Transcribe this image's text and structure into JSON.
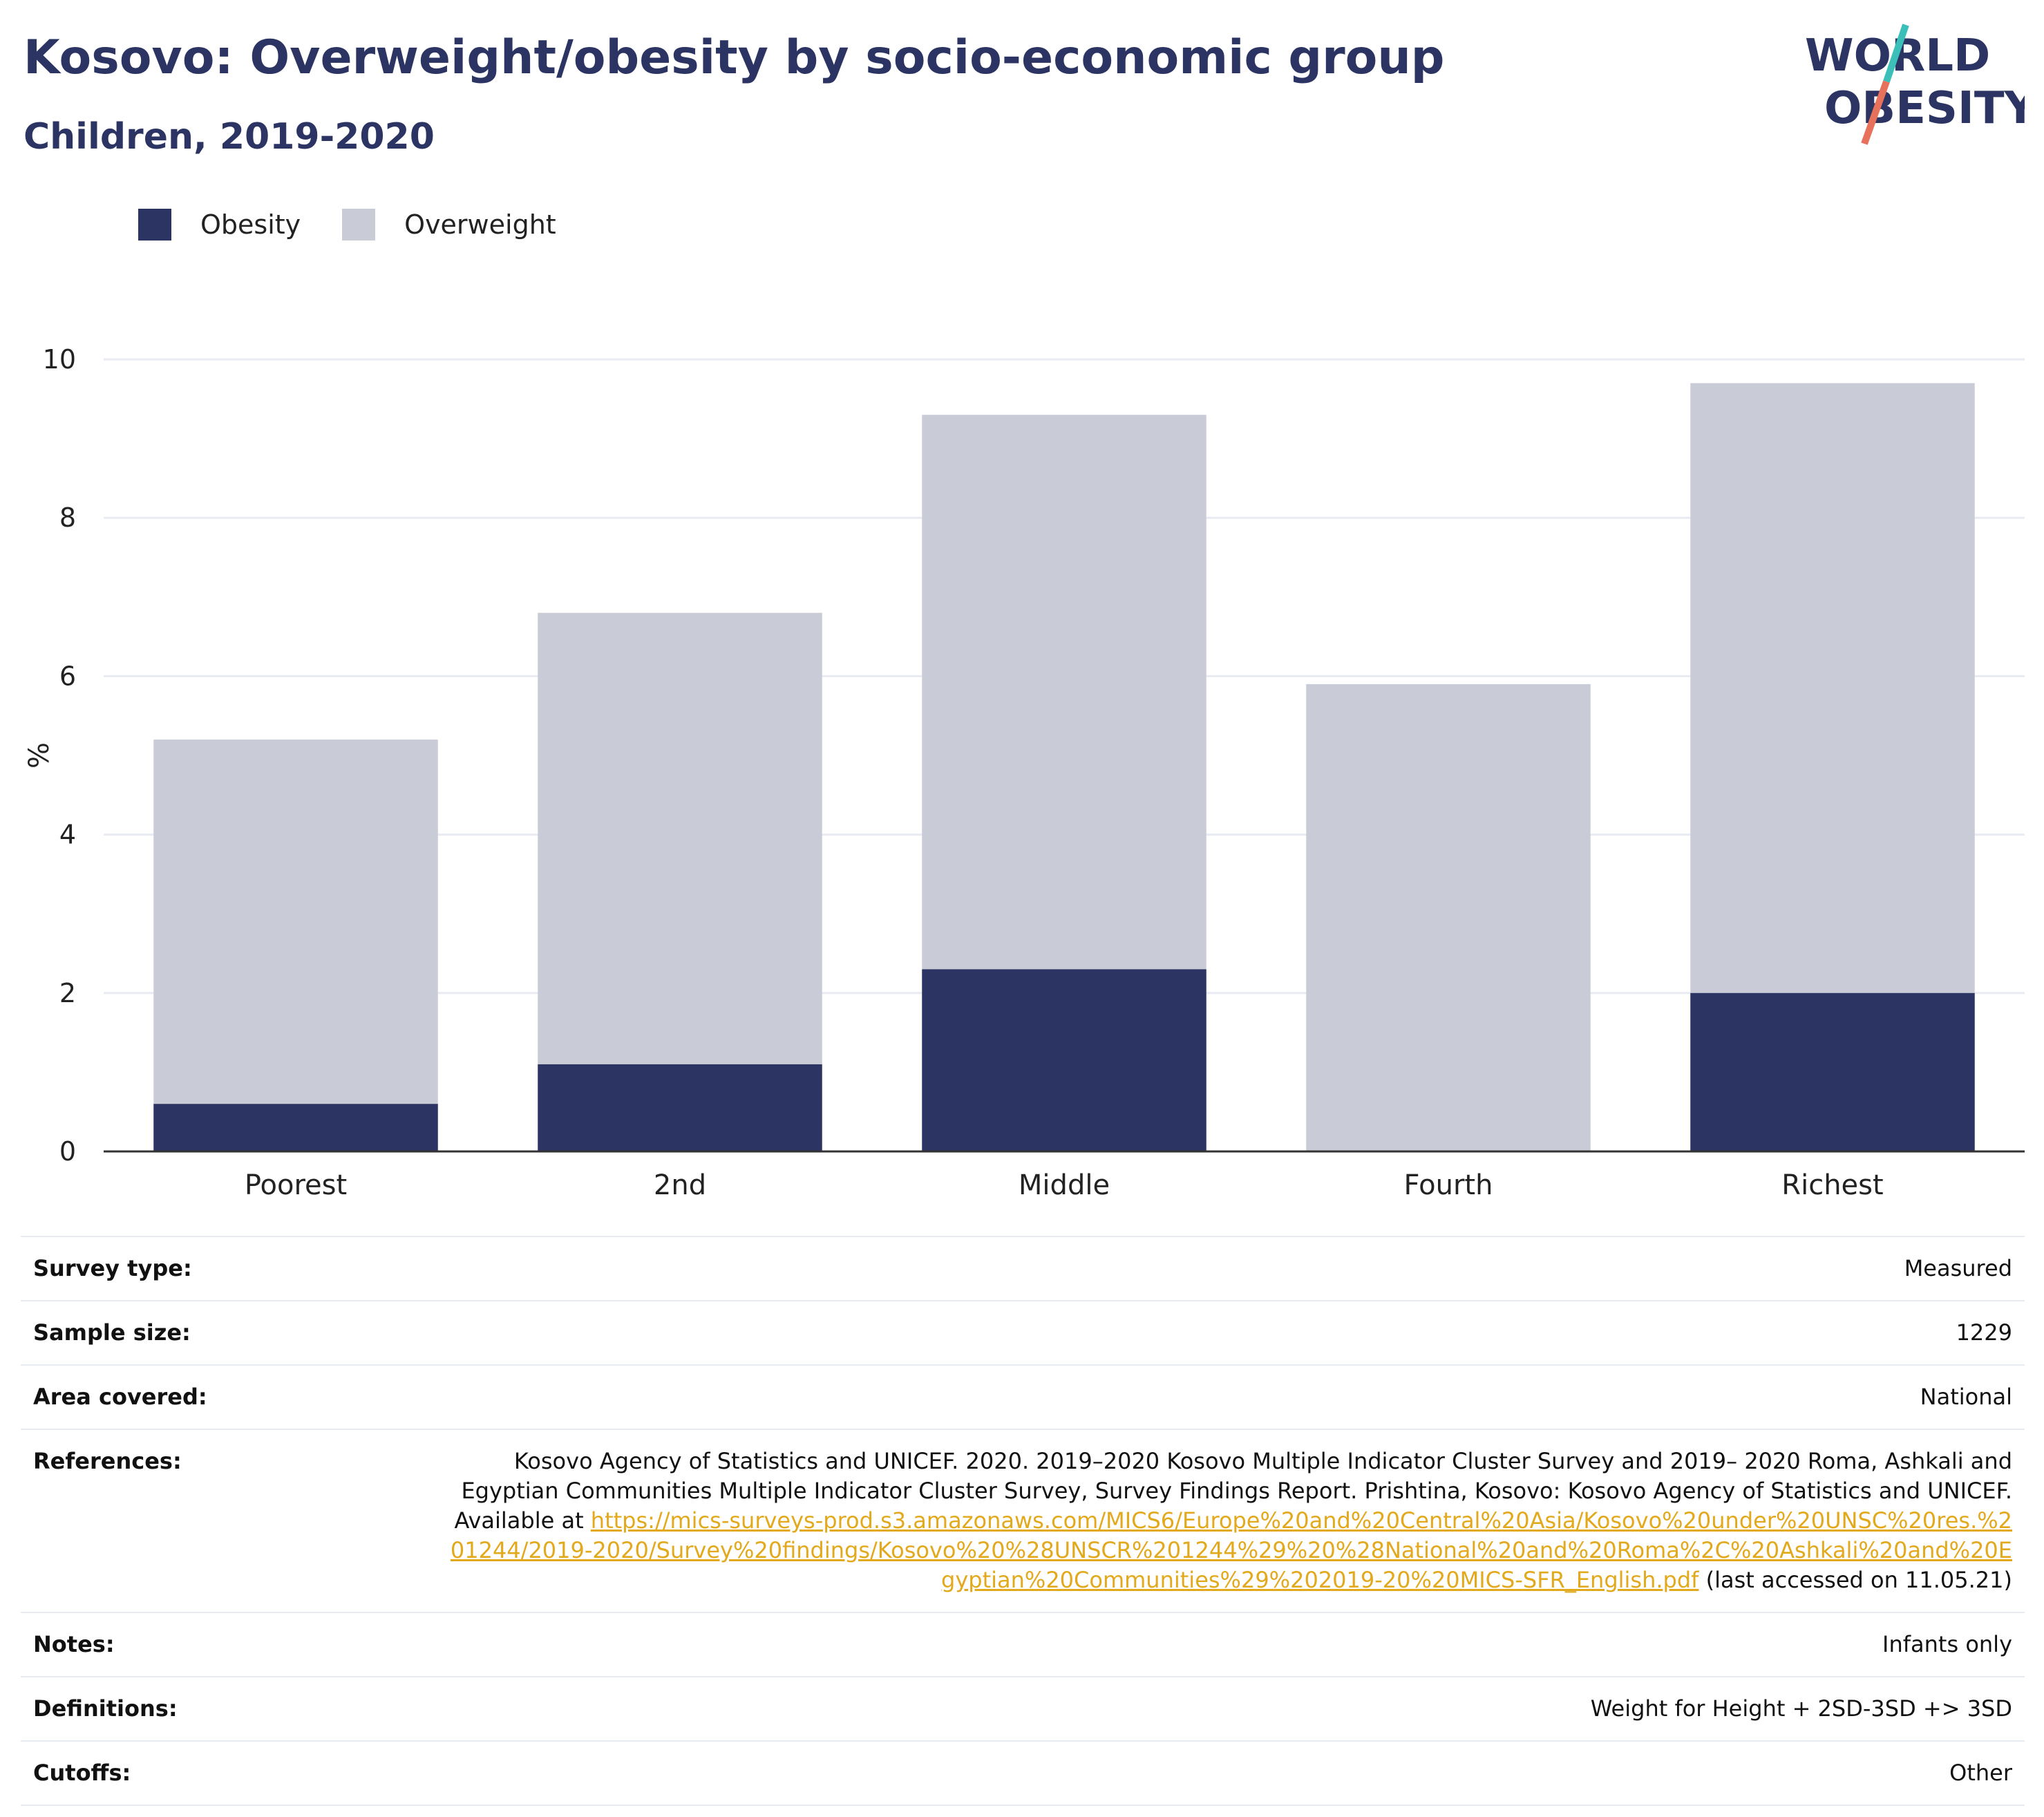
{
  "header": {
    "title": "Kosovo: Overweight/obesity by socio-economic group",
    "subtitle": "Children, 2019-2020"
  },
  "logo": {
    "line1": "WORLD",
    "line2": "OBESITY",
    "colors": {
      "text": "#2b3462",
      "slash_top": "#3bbfb8",
      "slash_bottom": "#e8715c"
    }
  },
  "colors": {
    "obesity": "#2b3462",
    "overweight": "#c9ccd7",
    "grid": "#e8ebf2",
    "axis": "#333333"
  },
  "chart_data": {
    "type": "bar",
    "stacked": false,
    "overlay": true,
    "categories": [
      "Poorest",
      "2nd",
      "Middle",
      "Fourth",
      "Richest"
    ],
    "series": [
      {
        "name": "Obesity",
        "values": [
          0.6,
          1.1,
          2.3,
          0.0,
          2.0
        ]
      },
      {
        "name": "Overweight",
        "values": [
          5.2,
          6.8,
          9.3,
          5.9,
          9.7
        ]
      }
    ],
    "ylabel": "%",
    "xlabel": "",
    "ylim": [
      0,
      10
    ],
    "yticks": [
      "0",
      "2",
      "4",
      "6",
      "8",
      "10"
    ],
    "grid": true,
    "legend": "top-left"
  },
  "legend": {
    "items": [
      {
        "label": "Obesity"
      },
      {
        "label": "Overweight"
      }
    ]
  },
  "info": {
    "survey_type": {
      "label": "Survey type:",
      "value": "Measured"
    },
    "sample_size": {
      "label": "Sample size:",
      "value": "1229"
    },
    "area_covered": {
      "label": "Area covered:",
      "value": "National"
    },
    "references": {
      "label": "References:",
      "text": "Kosovo Agency of Statistics and UNICEF. 2020. 2019–2020 Kosovo Multiple Indicator Cluster Survey and 2019– 2020 Roma, Ashkali and Egyptian Communities Multiple Indicator Cluster Survey, Survey Findings Report. Prishtina, Kosovo: Kosovo Agency of Statistics and UNICEF. Available at ",
      "link": "https://mics-surveys-prod.s3.amazonaws.com/MICS6/Europe%20and%20Central%20Asia/Kosovo%20under%20UNSC%20res.%201244/2019-2020/Survey%20findings/Kosovo%20%28UNSCR%201244%29%20%28National%20and%20Roma%2C%20Ashkali%20and%20Egyptian%20Communities%29%202019-20%20MICS-SFR_English.pdf",
      "suffix": " (last accessed on 11.05.21)"
    },
    "notes": {
      "label": "Notes:",
      "value": "Infants only"
    },
    "definitions": {
      "label": "Definitions:",
      "value": "Weight for Height + 2SD-3SD +> 3SD"
    },
    "cutoffs": {
      "label": "Cutoffs:",
      "value": "Other"
    }
  }
}
